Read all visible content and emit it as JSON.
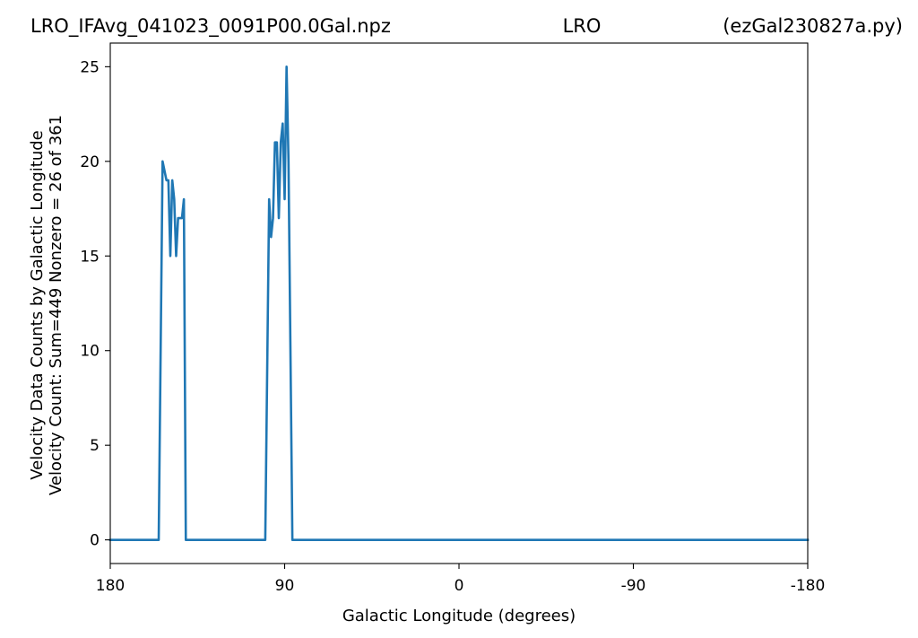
{
  "chart_data": {
    "type": "line",
    "title": {
      "left": "LRO_IFAvg_041023_0091P00.0Gal.npz",
      "center": "LRO",
      "right": "(ezGal230827a.py)"
    },
    "xlabel": "Galactic Longitude (degrees)",
    "ylabel": [
      "Velocity Data Counts by Galactic Longitude",
      "Velocity Count: Sum=449 Nonzero = 26 of 361"
    ],
    "xlim": [
      180,
      -180
    ],
    "ylim": [
      -1.25,
      26.25
    ],
    "x_ticks": [
      180,
      90,
      0,
      -90,
      -180
    ],
    "x_tick_labels": [
      "180",
      "90",
      "0",
      "-90",
      "-180"
    ],
    "y_ticks": [
      0,
      5,
      10,
      15,
      20,
      25
    ],
    "y_tick_labels": [
      "0",
      "5",
      "10",
      "15",
      "20",
      "25"
    ],
    "grid": false,
    "legend": "none",
    "series": [
      {
        "color": "#1f77b4",
        "x": [
          180,
          155,
          153,
          151,
          150,
          149,
          148,
          147,
          146,
          145,
          144,
          143,
          142,
          141,
          139,
          100,
          98,
          97,
          96,
          95,
          94,
          93,
          92,
          91,
          90,
          89,
          88,
          86,
          -180
        ],
        "y": [
          0,
          0,
          20,
          19,
          19,
          15,
          19,
          18,
          15,
          17,
          17,
          17,
          18,
          0,
          0,
          0,
          18,
          16,
          17,
          21,
          21,
          17,
          21,
          22,
          18,
          25,
          20,
          0,
          0
        ]
      }
    ]
  }
}
